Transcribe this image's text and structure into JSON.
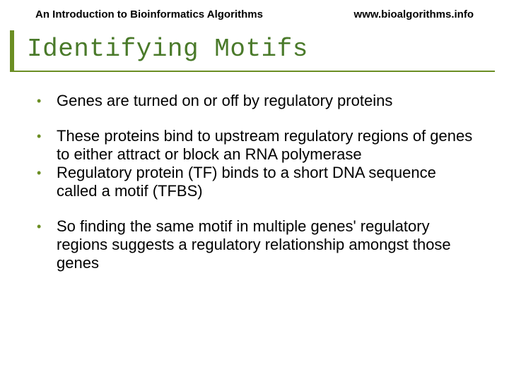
{
  "header": {
    "left": "An Introduction to Bioinformatics Algorithms",
    "right": "www.bioalgorithms.info"
  },
  "title": "Identifying Motifs",
  "bullets": [
    "Genes are turned on or off by regulatory proteins",
    "These proteins bind to upstream regulatory regions of genes to either attract or block an RNA polymerase",
    "Regulatory protein (TF) binds to a short DNA sequence called a motif (TFBS)",
    "So finding the same motif in multiple genes' regulatory regions suggests a regulatory relationship amongst those genes"
  ],
  "colors": {
    "accent": "#6b8e23",
    "title_text": "#4a7a2a",
    "body_text": "#000000",
    "background": "#ffffff"
  },
  "typography": {
    "header_fontsize": 15,
    "title_fontsize": 36,
    "title_font": "monospace",
    "bullet_fontsize": 22
  }
}
